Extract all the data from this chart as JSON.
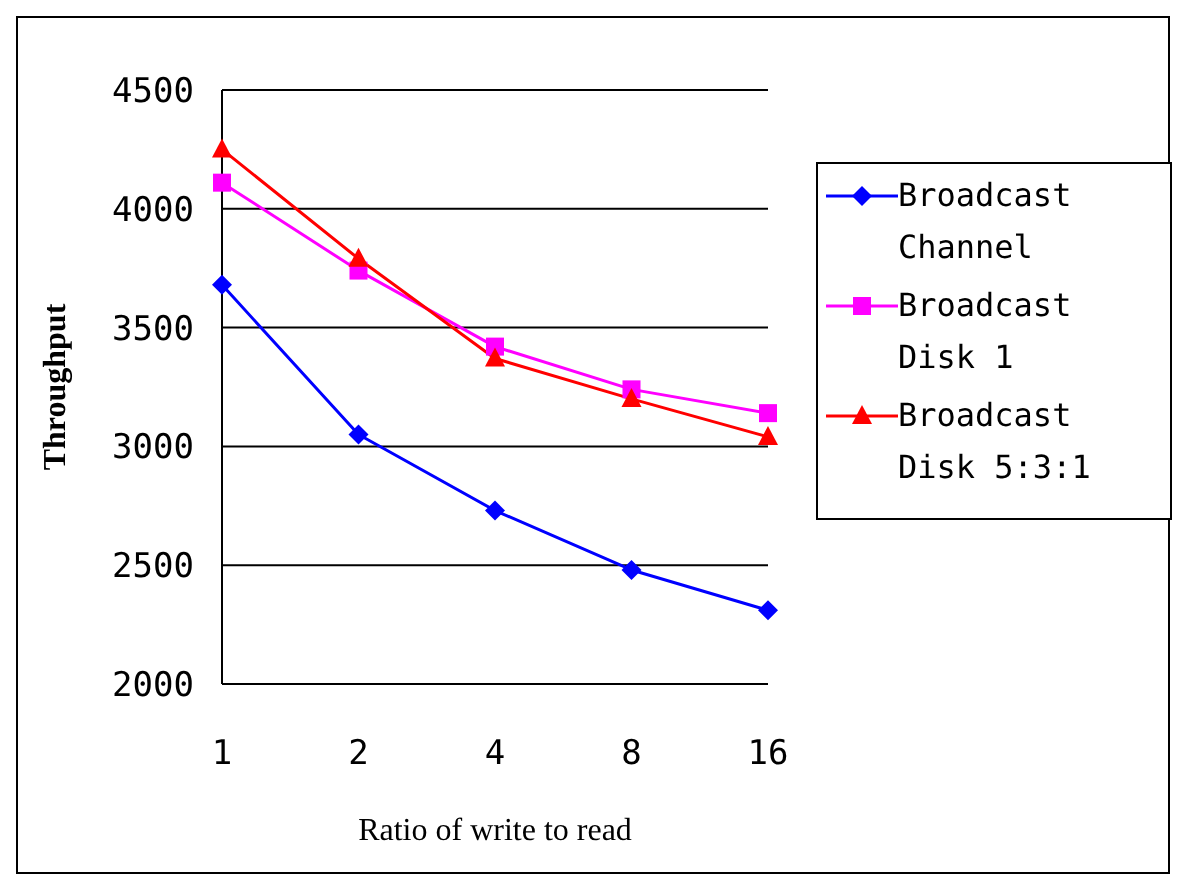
{
  "chart_data": {
    "type": "line",
    "xlabel": "Ratio of write to read",
    "ylabel": "Throughput",
    "categories": [
      "1",
      "2",
      "4",
      "8",
      "16"
    ],
    "series": [
      {
        "name": "Broadcast Channel",
        "color": "#0000ff",
        "marker": "diamond",
        "values": [
          3680,
          3050,
          2730,
          2480,
          2310
        ]
      },
      {
        "name": "Broadcast Disk 1",
        "color": "#ff00ff",
        "marker": "square",
        "values": [
          4110,
          3740,
          3420,
          3240,
          3140
        ]
      },
      {
        "name": "Broadcast Disk 5:3:1",
        "color": "#ff0000",
        "marker": "triangle",
        "values": [
          4250,
          3790,
          3370,
          3200,
          3040
        ]
      }
    ],
    "ylim": [
      2000,
      4500
    ],
    "yticks": [
      2000,
      2500,
      3000,
      3500,
      4000,
      4500
    ],
    "grid": "y",
    "legend": "right"
  }
}
